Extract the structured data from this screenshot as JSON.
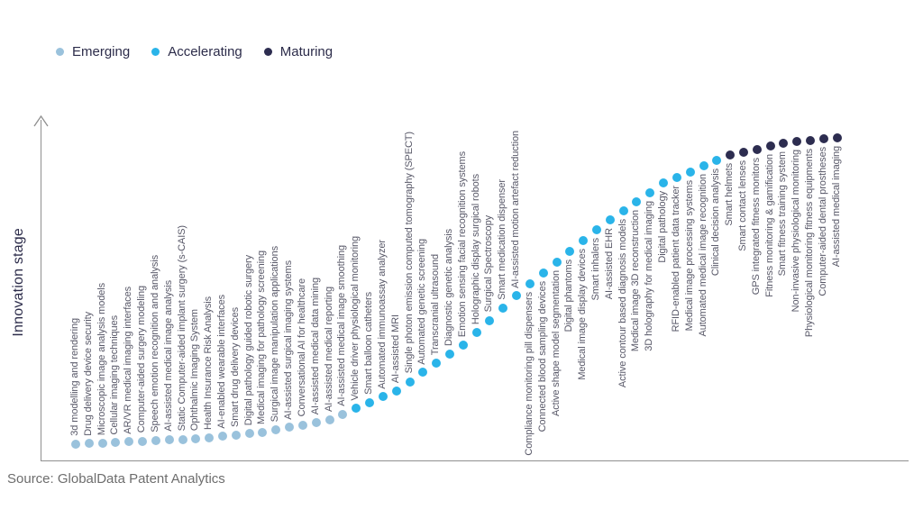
{
  "source": "Source: GlobalData Patent Analytics",
  "chart_data": {
    "type": "scatter",
    "ylabel": "Innovation stage",
    "legend_position": "top-left",
    "grid": false,
    "stages": [
      "Emerging",
      "Accelerating",
      "Maturing"
    ],
    "stage_colors": {
      "Emerging": "#9ac2dc",
      "Accelerating": "#2ab4e9",
      "Maturing": "#2d2d50"
    },
    "axis_color": "#8f8f8f",
    "label_color": "#585868",
    "points": [
      {
        "label": "3d modelling and rendering",
        "stage": "Emerging",
        "stage_score": 0.0
      },
      {
        "label": "Drug delivery device security",
        "stage": "Emerging",
        "stage_score": 0.2
      },
      {
        "label": "Microscopic image analysis models",
        "stage": "Emerging",
        "stage_score": 0.4
      },
      {
        "label": "Cellular imaging techniques",
        "stage": "Emerging",
        "stage_score": 0.6
      },
      {
        "label": "AR/VR medical imaging interfaces",
        "stage": "Emerging",
        "stage_score": 0.8
      },
      {
        "label": "Computer-aided surgery modeling",
        "stage": "Emerging",
        "stage_score": 1.0
      },
      {
        "label": "Speech emotion recognition and analysis",
        "stage": "Emerging",
        "stage_score": 1.2
      },
      {
        "label": "AI-assisted medical image analysis",
        "stage": "Emerging",
        "stage_score": 1.4
      },
      {
        "label": "Static Computer-aided implant surgery (s-CAIS)",
        "stage": "Emerging",
        "stage_score": 1.6
      },
      {
        "label": "Ophthalmic Imaging System",
        "stage": "Emerging",
        "stage_score": 1.8
      },
      {
        "label": "Health Insurance Risk Analysis",
        "stage": "Emerging",
        "stage_score": 2.2
      },
      {
        "label": "AI-enabled wearable interfaces",
        "stage": "Emerging",
        "stage_score": 2.6
      },
      {
        "label": "Smart drug delivery devices",
        "stage": "Emerging",
        "stage_score": 3.0
      },
      {
        "label": "Digital pathology guided robotic surgery",
        "stage": "Emerging",
        "stage_score": 3.4
      },
      {
        "label": "Medical imaging for pathology screening",
        "stage": "Emerging",
        "stage_score": 3.8
      },
      {
        "label": "Surgical image manipulation applications",
        "stage": "Emerging",
        "stage_score": 4.6
      },
      {
        "label": "AI-assisted surgical imaging systems",
        "stage": "Emerging",
        "stage_score": 5.5
      },
      {
        "label": "Conversational AI for healthcare",
        "stage": "Emerging",
        "stage_score": 6.3
      },
      {
        "label": "AI-assisted medical data mining",
        "stage": "Emerging",
        "stage_score": 7.1
      },
      {
        "label": "AI-assisted medical reporting",
        "stage": "Emerging",
        "stage_score": 7.9
      },
      {
        "label": "AI-assisted medical image smoothing",
        "stage": "Emerging",
        "stage_score": 9.8
      },
      {
        "label": "Vehicle driver physiological monitoring",
        "stage": "Accelerating",
        "stage_score": 11.7
      },
      {
        "label": "Smart balloon catheters",
        "stage": "Accelerating",
        "stage_score": 13.6
      },
      {
        "label": "Automated immunoassay analyzer",
        "stage": "Accelerating",
        "stage_score": 15.5
      },
      {
        "label": "AI-assisted MRI",
        "stage": "Accelerating",
        "stage_score": 17.4
      },
      {
        "label": "Single photon emission computed tomography (SPECT)",
        "stage": "Accelerating",
        "stage_score": 20.4
      },
      {
        "label": "Automated genetic screening",
        "stage": "Accelerating",
        "stage_score": 23.4
      },
      {
        "label": "Transcranial ultrasound",
        "stage": "Accelerating",
        "stage_score": 26.4
      },
      {
        "label": "Diagnostic genetic analysis",
        "stage": "Accelerating",
        "stage_score": 29.4
      },
      {
        "label": "Emotion sensing facial recognition systems",
        "stage": "Accelerating",
        "stage_score": 32.4
      },
      {
        "label": "Holographic display surgical robots",
        "stage": "Accelerating",
        "stage_score": 36.4
      },
      {
        "label": "Surgical Spectroscopy",
        "stage": "Accelerating",
        "stage_score": 40.4
      },
      {
        "label": "Smart medication dispenser",
        "stage": "Accelerating",
        "stage_score": 44.4
      },
      {
        "label": "AI-assisted motion artefact reduction",
        "stage": "Accelerating",
        "stage_score": 48.4
      },
      {
        "label": "Compliance monitoring pill dispensers",
        "stage": "Accelerating",
        "stage_score": 52.4
      },
      {
        "label": "Connected blood sampling devices",
        "stage": "Accelerating",
        "stage_score": 55.9
      },
      {
        "label": "Active shape model segmentation",
        "stage": "Accelerating",
        "stage_score": 59.4
      },
      {
        "label": "Digital phantoms",
        "stage": "Accelerating",
        "stage_score": 62.9
      },
      {
        "label": "Medical image display devices",
        "stage": "Accelerating",
        "stage_score": 66.5
      },
      {
        "label": "Smart inhalers",
        "stage": "Accelerating",
        "stage_score": 70.0
      },
      {
        "label": "AI-assisted EHR",
        "stage": "Accelerating",
        "stage_score": 73.1
      },
      {
        "label": "Active contour based diagnosis models",
        "stage": "Accelerating",
        "stage_score": 76.1
      },
      {
        "label": "Medical image 3D reconstruction",
        "stage": "Accelerating",
        "stage_score": 79.2
      },
      {
        "label": "3D holography for medical imaging",
        "stage": "Accelerating",
        "stage_score": 82.2
      },
      {
        "label": "Digital pathology",
        "stage": "Accelerating",
        "stage_score": 85.3
      },
      {
        "label": "RFID-enabled patient data tracker",
        "stage": "Accelerating",
        "stage_score": 87.1
      },
      {
        "label": "Medical image processing systems",
        "stage": "Accelerating",
        "stage_score": 88.9
      },
      {
        "label": "Automated medical image recognition",
        "stage": "Accelerating",
        "stage_score": 90.8
      },
      {
        "label": "Clinical decision analysis",
        "stage": "Accelerating",
        "stage_score": 92.6
      },
      {
        "label": "Smart helmets",
        "stage": "Maturing",
        "stage_score": 94.4
      },
      {
        "label": "Smart contact lenses",
        "stage": "Maturing",
        "stage_score": 95.4
      },
      {
        "label": "GPS integrated fitness monitors",
        "stage": "Maturing",
        "stage_score": 96.3
      },
      {
        "label": "Fitness monitoring & gamification",
        "stage": "Maturing",
        "stage_score": 97.3
      },
      {
        "label": "Smart fitness training system",
        "stage": "Maturing",
        "stage_score": 98.2
      },
      {
        "label": "Non-invasive physiological monitoring",
        "stage": "Maturing",
        "stage_score": 98.7
      },
      {
        "label": "Physiological monitoring fitness equipments",
        "stage": "Maturing",
        "stage_score": 99.1
      },
      {
        "label": "Computer-aided dental prostheses",
        "stage": "Maturing",
        "stage_score": 99.6
      },
      {
        "label": "AI-assisted medical imaging",
        "stage": "Maturing",
        "stage_score": 100.0
      }
    ]
  }
}
